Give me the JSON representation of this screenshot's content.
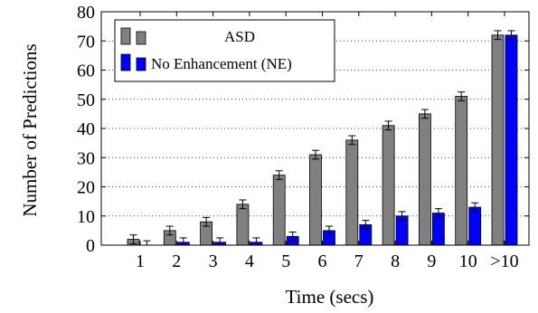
{
  "chart_data": {
    "type": "bar",
    "xlabel": "Time (secs)",
    "ylabel": "Number of Predictions",
    "categories": [
      "1",
      "2",
      "3",
      "4",
      "5",
      "6",
      "7",
      "8",
      "9",
      "10",
      ">10"
    ],
    "ylim": [
      0,
      80
    ],
    "yticks": [
      0,
      10,
      20,
      30,
      40,
      50,
      60,
      70,
      80
    ],
    "grid": "horizontal-dotted",
    "legend_position": "top-left",
    "error_bars": true,
    "series": [
      {
        "name": "ASD",
        "color": "#808080",
        "values": [
          2,
          5,
          8,
          14,
          24,
          31,
          36,
          41,
          45,
          51,
          72
        ],
        "errors": [
          1.5,
          1.5,
          1.5,
          1.5,
          1.5,
          1.5,
          1.5,
          1.5,
          1.5,
          1.5,
          1.5
        ]
      },
      {
        "name": "No Enhancement (NE)",
        "color": "#0000ff",
        "values": [
          0,
          1,
          1,
          1,
          3,
          5,
          7,
          10,
          11,
          13,
          72
        ],
        "errors": [
          1.5,
          1.5,
          1.5,
          1.5,
          1.5,
          1.5,
          1.5,
          1.5,
          1.5,
          1.5,
          1.5
        ]
      }
    ]
  }
}
